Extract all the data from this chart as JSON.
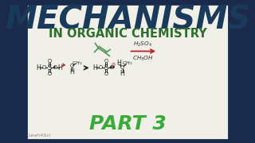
{
  "bg_color": "#f0f0e8",
  "border_color": "#1a2a4a",
  "title1": "MECHANISMS",
  "title1_color": "#1a3a5c",
  "title2": "IN ORGANIC CHEMISTRY",
  "title2_color": "#2d6e2d",
  "part_text": "PART 3",
  "part_color": "#3aaa3a",
  "watermark": "Leah4Sci",
  "watermark_color": "#888888",
  "alkene_color": "#5a9a5a",
  "arrow_color": "#bb2222",
  "bond_color": "#222222",
  "reagent_color": "#333333"
}
